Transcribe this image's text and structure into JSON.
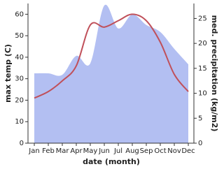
{
  "chart_data": {
    "type": "area-line",
    "x_label": "date (month)",
    "y_label": "max temp (C)",
    "y2_label": "med. precipitation (kg/m2)",
    "categories": [
      "Jan",
      "Feb",
      "Mar",
      "Apr",
      "May",
      "Jun",
      "Jul",
      "Aug",
      "Sep",
      "Oct",
      "Nov",
      "Dec"
    ],
    "series": [
      {
        "name": "precipitation",
        "kind": "area",
        "axis": "y2",
        "color": "#b3bff2",
        "values": [
          14.0,
          14.0,
          13.7,
          17.5,
          16.0,
          27.6,
          23.0,
          25.8,
          23.7,
          22.3,
          18.9,
          15.8
        ]
      },
      {
        "name": "max temp",
        "kind": "line",
        "color": "#c0505a",
        "values": [
          21,
          24,
          29,
          36,
          55,
          54,
          57,
          60,
          57,
          47,
          32,
          24
        ]
      }
    ],
    "ylim": [
      0,
      65
    ],
    "yticks": [
      0,
      10,
      20,
      30,
      40,
      50,
      60
    ],
    "y2lim": [
      0,
      28
    ],
    "y2ticks": [
      0,
      5,
      10,
      15,
      20,
      25
    ]
  }
}
